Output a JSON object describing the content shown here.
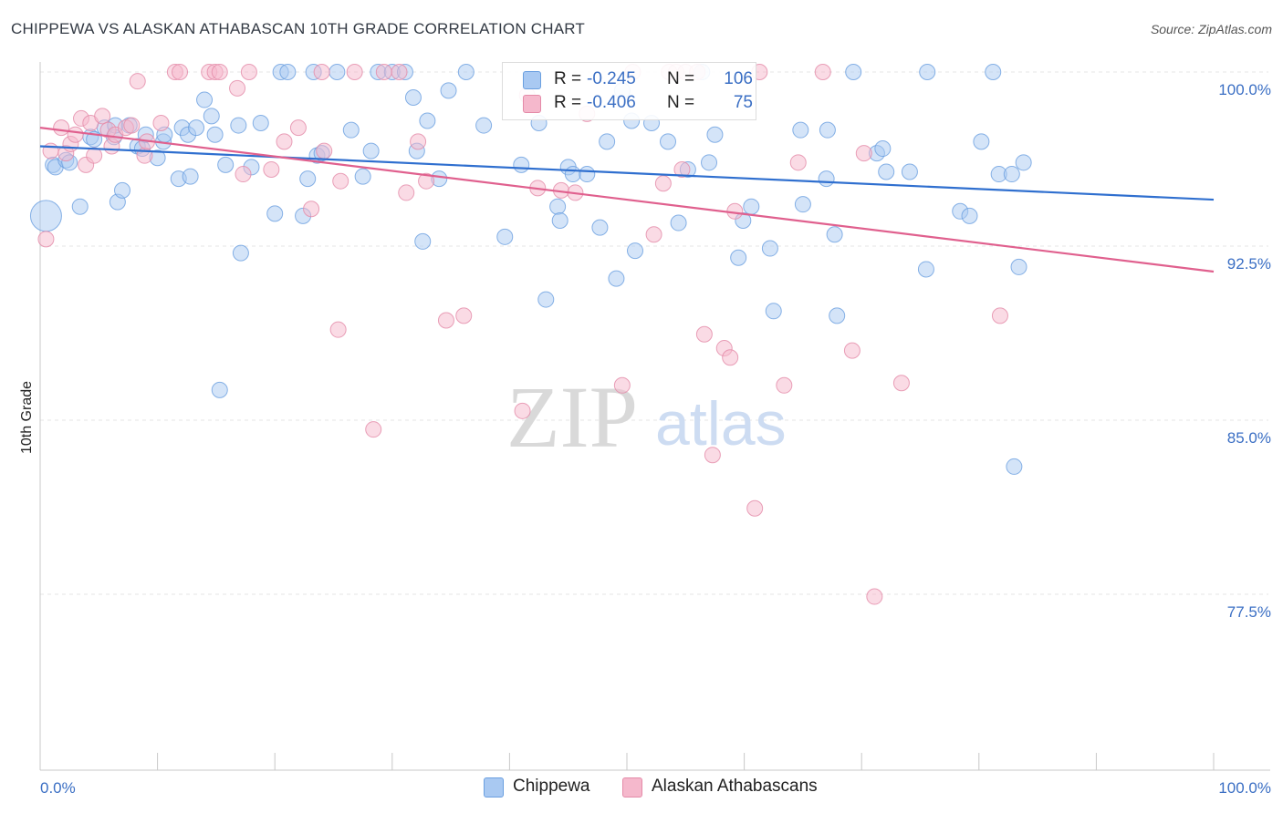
{
  "header": {
    "title": "CHIPPEWA VS ALASKAN ATHABASCAN 10TH GRADE CORRELATION CHART",
    "source": "Source: ZipAtlas.com"
  },
  "watermark": {
    "zip": "ZIP",
    "atlas": "atlas"
  },
  "legend_top": {
    "rows": [
      {
        "r_label": "R =",
        "r_value": "-0.245",
        "n_label": "N =",
        "n_value": "106",
        "color": "#a9c9f2"
      },
      {
        "r_label": "R =",
        "r_value": "-0.406",
        "n_label": "N =",
        "n_value": "75",
        "color": "#f5b8cc"
      }
    ]
  },
  "legend_bottom": {
    "items": [
      {
        "label": "Chippewa",
        "color": "#a9c9f2"
      },
      {
        "label": "Alaskan Athabascans",
        "color": "#f5b8cc"
      }
    ]
  },
  "chart_data": {
    "type": "scatter",
    "title": "CHIPPEWA VS ALASKAN ATHABASCAN 10TH GRADE CORRELATION CHART",
    "xlabel": "",
    "ylabel": "10th Grade",
    "xlim": [
      0,
      100
    ],
    "ylim": [
      70.5,
      101.0
    ],
    "x_tick_labels": [
      "0.0%",
      "100.0%"
    ],
    "y_ticks": [
      100.0,
      92.5,
      85.0,
      77.5
    ],
    "y_tick_labels": [
      "100.0%",
      "92.5%",
      "85.0%",
      "77.5%"
    ],
    "grid": true,
    "legend_placement": "top-center",
    "colors": {
      "chippewa_fill": "#a9c9f2",
      "chippewa_stroke": "#6a9fe0",
      "chippewa_line": "#2f6fcf",
      "alaskan_fill": "#f5b8cc",
      "alaskan_stroke": "#e48aa8",
      "alaskan_line": "#e0608e"
    },
    "series": [
      {
        "name": "Chippewa",
        "r": -0.245,
        "n": 106,
        "trend": {
          "x": [
            0,
            100
          ],
          "y": [
            96.8,
            94.5
          ]
        },
        "points": [
          [
            0.5,
            93.8
          ],
          [
            1.1,
            96.0
          ],
          [
            1.3,
            95.9
          ],
          [
            2.2,
            96.2
          ],
          [
            2.5,
            96.1
          ],
          [
            3.4,
            94.2
          ],
          [
            4.3,
            97.2
          ],
          [
            4.6,
            97.1
          ],
          [
            5.5,
            97.6
          ],
          [
            6.3,
            97.2
          ],
          [
            6.4,
            97.7
          ],
          [
            6.6,
            94.4
          ],
          [
            7.0,
            94.9
          ],
          [
            7.6,
            97.7
          ],
          [
            8.3,
            96.8
          ],
          [
            8.7,
            96.7
          ],
          [
            9.0,
            97.3
          ],
          [
            10.0,
            96.3
          ],
          [
            10.5,
            97.0
          ],
          [
            10.6,
            97.3
          ],
          [
            11.8,
            95.4
          ],
          [
            12.1,
            97.6
          ],
          [
            12.6,
            97.3
          ],
          [
            12.8,
            95.5
          ],
          [
            13.3,
            97.6
          ],
          [
            14.0,
            98.8
          ],
          [
            14.6,
            98.1
          ],
          [
            14.9,
            97.3
          ],
          [
            15.3,
            86.3
          ],
          [
            15.8,
            96.0
          ],
          [
            16.9,
            97.7
          ],
          [
            17.1,
            92.2
          ],
          [
            18.0,
            95.9
          ],
          [
            18.8,
            97.8
          ],
          [
            20.0,
            93.9
          ],
          [
            20.5,
            100.0
          ],
          [
            21.1,
            100.0
          ],
          [
            22.4,
            93.8
          ],
          [
            22.8,
            95.4
          ],
          [
            23.3,
            100.0
          ],
          [
            23.6,
            96.4
          ],
          [
            24.0,
            96.5
          ],
          [
            25.3,
            100.0
          ],
          [
            26.5,
            97.5
          ],
          [
            27.5,
            95.5
          ],
          [
            28.2,
            96.6
          ],
          [
            28.8,
            100.0
          ],
          [
            30.0,
            100.0
          ],
          [
            31.1,
            100.0
          ],
          [
            31.8,
            98.9
          ],
          [
            32.1,
            96.6
          ],
          [
            32.6,
            92.7
          ],
          [
            33.0,
            97.9
          ],
          [
            34.0,
            95.4
          ],
          [
            34.8,
            99.2
          ],
          [
            36.3,
            100.0
          ],
          [
            37.8,
            97.7
          ],
          [
            39.6,
            92.9
          ],
          [
            41.0,
            96.0
          ],
          [
            42.5,
            97.8
          ],
          [
            43.1,
            90.2
          ],
          [
            44.1,
            94.2
          ],
          [
            44.3,
            93.6
          ],
          [
            45.0,
            95.9
          ],
          [
            45.4,
            95.6
          ],
          [
            46.6,
            95.6
          ],
          [
            47.7,
            93.3
          ],
          [
            48.3,
            97.0
          ],
          [
            49.1,
            91.1
          ],
          [
            49.6,
            99.2
          ],
          [
            50.4,
            97.9
          ],
          [
            50.7,
            92.3
          ],
          [
            52.1,
            97.8
          ],
          [
            53.5,
            97.0
          ],
          [
            54.4,
            93.5
          ],
          [
            55.2,
            95.8
          ],
          [
            56.4,
            100.0
          ],
          [
            57.0,
            96.1
          ],
          [
            57.5,
            97.3
          ],
          [
            59.5,
            92.0
          ],
          [
            59.9,
            93.6
          ],
          [
            60.6,
            94.2
          ],
          [
            62.2,
            92.4
          ],
          [
            62.5,
            89.7
          ],
          [
            64.8,
            97.5
          ],
          [
            65.0,
            94.3
          ],
          [
            67.0,
            95.4
          ],
          [
            67.1,
            97.5
          ],
          [
            67.7,
            93.0
          ],
          [
            67.9,
            89.5
          ],
          [
            69.3,
            100.0
          ],
          [
            71.3,
            96.5
          ],
          [
            71.8,
            96.7
          ],
          [
            72.1,
            95.7
          ],
          [
            74.1,
            95.7
          ],
          [
            75.5,
            91.5
          ],
          [
            75.6,
            100.0
          ],
          [
            78.4,
            94.0
          ],
          [
            79.2,
            93.8
          ],
          [
            80.2,
            97.0
          ],
          [
            81.2,
            100.0
          ],
          [
            81.7,
            95.6
          ],
          [
            82.8,
            95.6
          ],
          [
            83.0,
            83.0
          ],
          [
            83.4,
            91.6
          ],
          [
            83.8,
            96.1
          ]
        ]
      },
      {
        "name": "Alaskan Athabascans",
        "r": -0.406,
        "n": 75,
        "trend": {
          "x": [
            0,
            100
          ],
          "y": [
            97.6,
            91.4
          ]
        },
        "points": [
          [
            0.5,
            92.8
          ],
          [
            0.9,
            96.6
          ],
          [
            1.8,
            97.6
          ],
          [
            2.2,
            96.5
          ],
          [
            2.6,
            96.9
          ],
          [
            3.0,
            97.3
          ],
          [
            3.5,
            98.0
          ],
          [
            3.9,
            96.0
          ],
          [
            4.3,
            97.8
          ],
          [
            4.6,
            96.4
          ],
          [
            5.3,
            98.1
          ],
          [
            5.8,
            97.5
          ],
          [
            6.1,
            96.8
          ],
          [
            6.4,
            97.3
          ],
          [
            7.3,
            97.6
          ],
          [
            7.8,
            97.7
          ],
          [
            8.3,
            99.6
          ],
          [
            8.9,
            96.4
          ],
          [
            9.1,
            97.0
          ],
          [
            10.3,
            97.8
          ],
          [
            11.5,
            100.0
          ],
          [
            11.9,
            100.0
          ],
          [
            14.4,
            100.0
          ],
          [
            14.9,
            100.0
          ],
          [
            15.3,
            100.0
          ],
          [
            16.8,
            99.3
          ],
          [
            17.3,
            95.6
          ],
          [
            17.8,
            100.0
          ],
          [
            19.7,
            95.8
          ],
          [
            20.8,
            97.0
          ],
          [
            22.0,
            97.6
          ],
          [
            23.1,
            94.1
          ],
          [
            24.0,
            100.0
          ],
          [
            24.2,
            96.6
          ],
          [
            25.4,
            88.9
          ],
          [
            25.6,
            95.3
          ],
          [
            26.8,
            100.0
          ],
          [
            28.4,
            84.6
          ],
          [
            29.3,
            100.0
          ],
          [
            30.6,
            100.0
          ],
          [
            31.2,
            94.8
          ],
          [
            32.2,
            97.0
          ],
          [
            32.9,
            95.3
          ],
          [
            34.6,
            89.3
          ],
          [
            36.1,
            89.5
          ],
          [
            41.1,
            85.4
          ],
          [
            41.5,
            99.0
          ],
          [
            42.4,
            95.0
          ],
          [
            44.4,
            94.9
          ],
          [
            45.6,
            94.8
          ],
          [
            46.6,
            98.2
          ],
          [
            49.6,
            86.5
          ],
          [
            50.5,
            100.0
          ],
          [
            52.3,
            93.0
          ],
          [
            53.1,
            95.2
          ],
          [
            53.6,
            100.0
          ],
          [
            54.2,
            100.0
          ],
          [
            54.7,
            95.8
          ],
          [
            55.0,
            100.0
          ],
          [
            56.0,
            100.0
          ],
          [
            56.6,
            88.7
          ],
          [
            57.3,
            83.5
          ],
          [
            58.3,
            88.1
          ],
          [
            58.8,
            87.7
          ],
          [
            59.2,
            94.0
          ],
          [
            60.9,
            81.2
          ],
          [
            61.3,
            100.0
          ],
          [
            63.4,
            86.5
          ],
          [
            64.6,
            96.1
          ],
          [
            66.7,
            100.0
          ],
          [
            69.2,
            88.0
          ],
          [
            70.2,
            96.5
          ],
          [
            71.1,
            77.4
          ],
          [
            73.4,
            86.6
          ],
          [
            81.8,
            89.5
          ]
        ]
      }
    ]
  }
}
